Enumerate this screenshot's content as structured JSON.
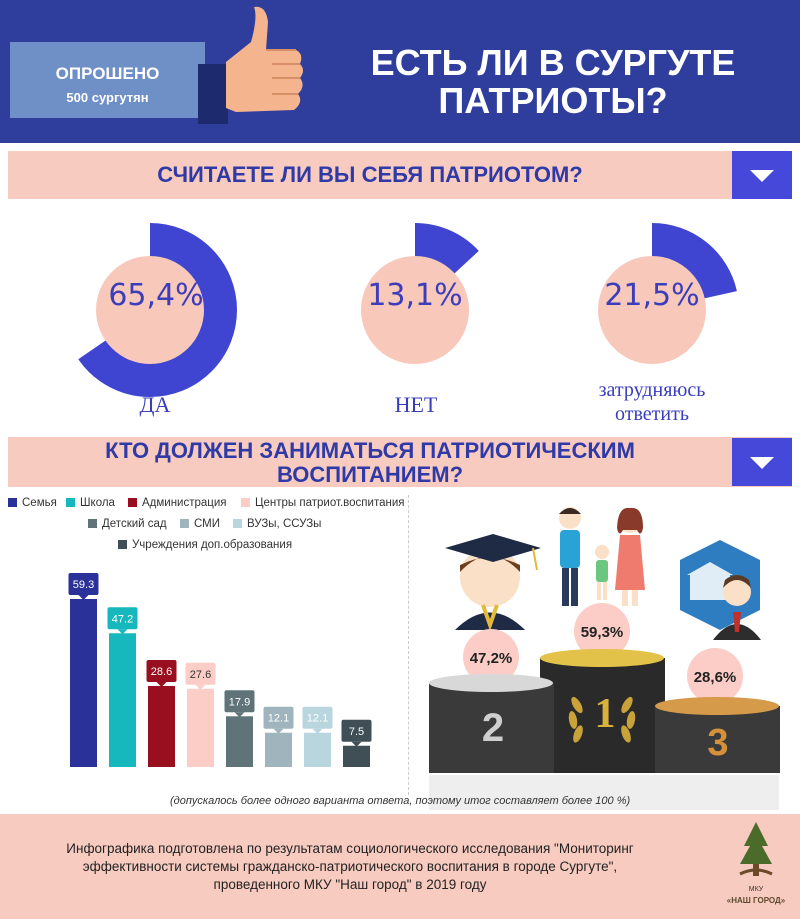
{
  "header": {
    "badge_line1": "ОПРОШЕНО",
    "badge_line2": "500 сургутян",
    "title_line1": "ЕСТЬ ЛИ В СУРГУТЕ",
    "title_line2": "ПАТРИОТЫ?"
  },
  "q1": {
    "text": "СЧИТАЕТЕ ЛИ ВЫ СЕБЯ ПАТРИОТОМ?"
  },
  "donuts": [
    {
      "pct_text": "65,4%",
      "value": 65.4,
      "label": "ДА"
    },
    {
      "pct_text": "13,1%",
      "value": 13.1,
      "label": "НЕТ"
    },
    {
      "pct_text": "21,5%",
      "value": 21.5,
      "label_line1": "затрудняюсь",
      "label_line2": "ответить"
    }
  ],
  "q2": {
    "line1": "КТО ДОЛЖЕН ЗАНИМАТЬСЯ ПАТРИОТИЧЕСКИМ",
    "line2": "ВОСПИТАНИЕМ?"
  },
  "colors": {
    "primary": "#2f3d9c",
    "accent": "#4548d8",
    "band": "#f7cbc0",
    "donut": "#3f45d0",
    "pctCircle": "#f8c8bb"
  },
  "chart_data": {
    "type": "bar",
    "categories": [
      "Семья",
      "Школа",
      "Администрация",
      "Центры патриот.воспитания",
      "Детский сад",
      "СМИ",
      "ВУЗы, ССУЗы",
      "Учреждения доп.образования"
    ],
    "values": [
      59.3,
      47.2,
      28.6,
      27.6,
      17.9,
      12.1,
      12.1,
      7.5
    ],
    "value_labels": [
      "59.3",
      "47.2",
      "28.6",
      "27.6",
      "17.9",
      "12.1",
      "12.1",
      "7.5"
    ],
    "colors": [
      "#2a3299",
      "#16b7bd",
      "#9a0f1f",
      "#fbcdc6",
      "#5f7378",
      "#9fb4bc",
      "#b9d6df",
      "#3f4f55"
    ],
    "ylim": [
      0,
      70
    ],
    "legend": "top"
  },
  "podium": {
    "first": "59,3%",
    "second": "47,2%",
    "third": "28,6%",
    "num1": "1",
    "num2": "2",
    "num3": "3"
  },
  "note": "(допускалось более одного варианта ответа, поэтому итог составляет более 100 %)",
  "footer": {
    "line1": "Инфографика подготовлена по результатам социологического исследования \"Мониторинг",
    "line2": "эффективности системы гражданско-патриотического воспитания в городе Сургуте\",",
    "line3": "проведенного МКУ \"Наш город\" в 2019 году"
  },
  "logo": {
    "line1": "МКУ",
    "line2": "«НАШ ГОРОД»"
  }
}
